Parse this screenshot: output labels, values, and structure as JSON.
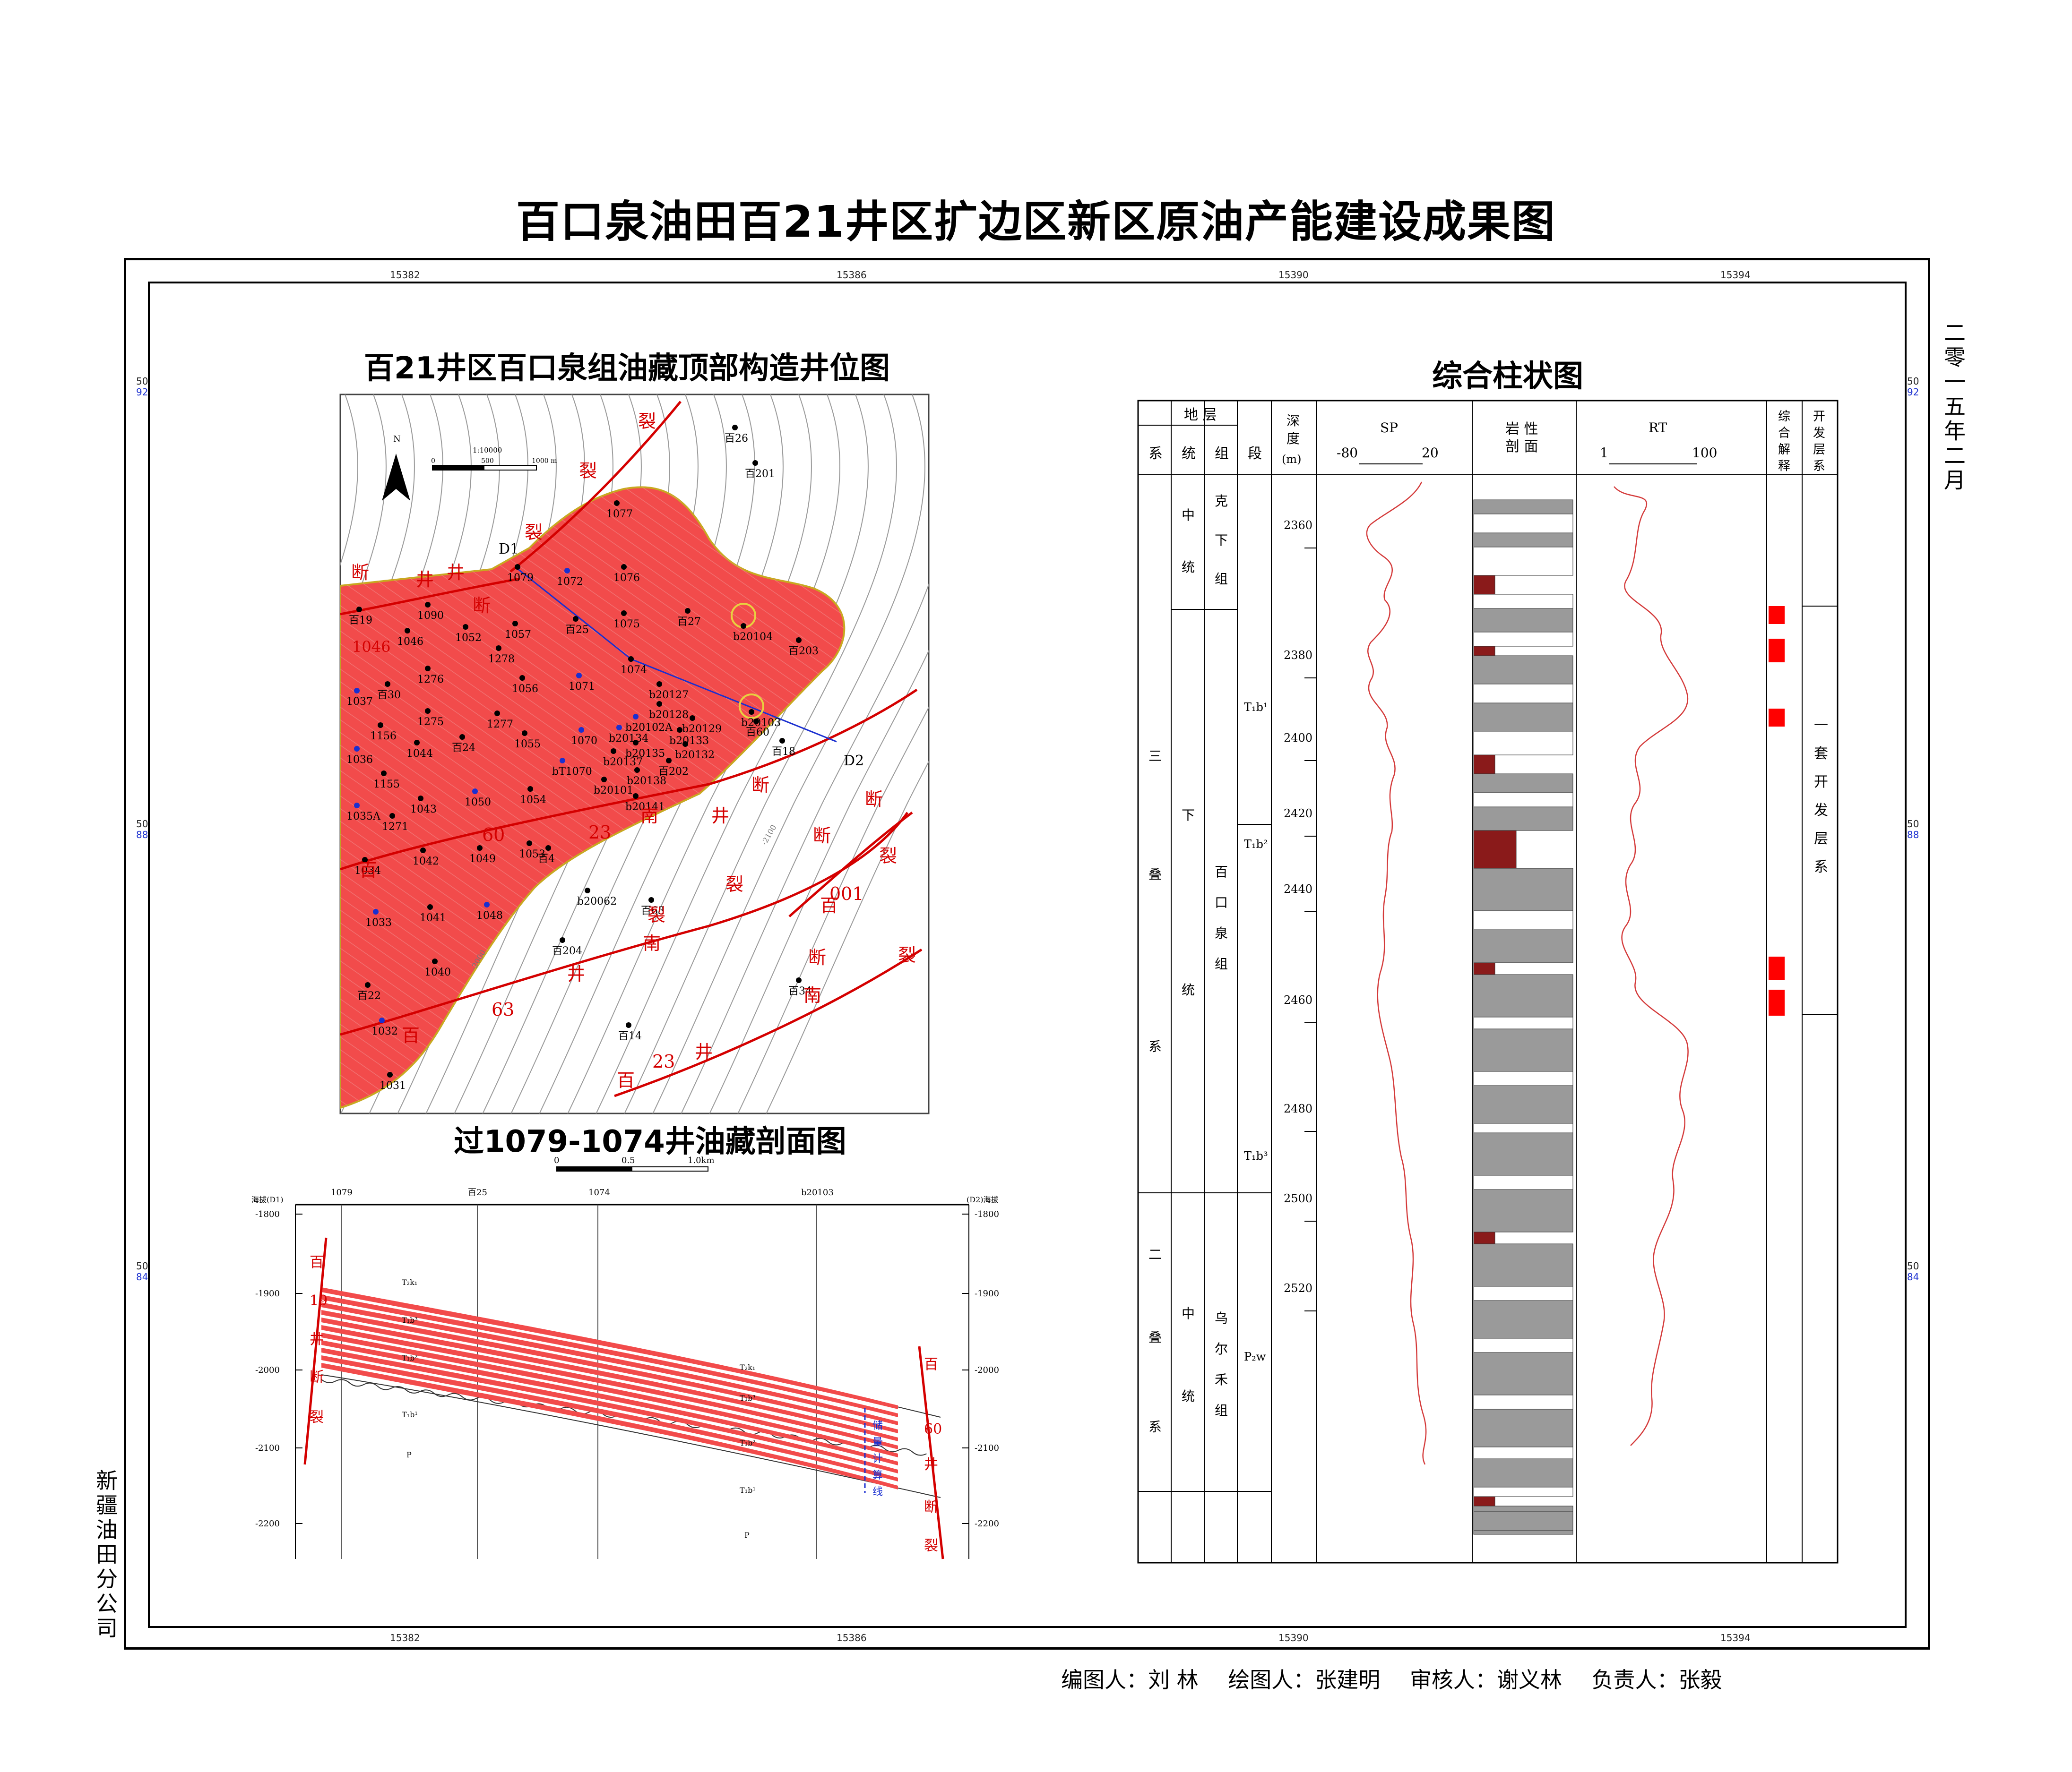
{
  "title": "百口泉油田百21井区扩边区新区原油产能建设成果图",
  "side_right": "二零一五年二月",
  "side_left": "新疆油田分公司",
  "footer": {
    "editor": "编图人：刘 林",
    "drafter": "绘图人：张建明",
    "reviewer": "审核人：谢义林",
    "leader": "负责人：张毅"
  },
  "frame_coords": {
    "x_labels": [
      "15382",
      "15386",
      "15390",
      "15394"
    ],
    "y_labels": [
      [
        "50",
        "92"
      ],
      [
        "50",
        "88"
      ],
      [
        "50",
        "84"
      ]
    ]
  },
  "map": {
    "title": "百21井区百口泉组油藏顶部构造井位图",
    "north": "N",
    "scale_text": "1:10000",
    "scale_ticks": [
      "0",
      "500",
      "1000 m"
    ],
    "contour_labels": [
      "-2100",
      "-2000"
    ],
    "section_ends": [
      "D1",
      "D2"
    ],
    "wells": [
      "百26",
      "百201",
      "1077",
      "1079",
      "1072",
      "1076",
      "百19",
      "1090",
      "1046",
      "1052",
      "1057",
      "百25",
      "1075",
      "百27",
      "b20104",
      "百203",
      "1278",
      "1276",
      "1056",
      "1071",
      "1074",
      "b20127",
      "1037",
      "百30",
      "1275",
      "1277",
      "b20128",
      "b20129",
      "b20103",
      "百60",
      "1156",
      "1044",
      "百24",
      "1055",
      "1070",
      "b20102A",
      "b20134",
      "b20133",
      "b20132",
      "百18",
      "1036",
      "bT1070",
      "b20135",
      "b20137",
      "百202",
      "1155",
      "1043",
      "1050",
      "1054",
      "b20101",
      "b20138",
      "1035A",
      "1271",
      "b20141",
      "1034",
      "1042",
      "1049",
      "1053",
      "百4",
      "百22",
      "1033",
      "1041",
      "1048",
      "b20062",
      "百63",
      "1040",
      "百204",
      "1032",
      "1031",
      "百34",
      "百14"
    ],
    "fault_labels": [
      "裂",
      "断",
      "井",
      "百",
      "19",
      "60",
      "南",
      "001",
      "23",
      "63"
    ],
    "fault_names_extra": [
      "1046"
    ]
  },
  "section": {
    "title": "过1079-1074井油藏剖面图",
    "scale_ticks": [
      "0",
      "0.5",
      "1.0km"
    ],
    "left_axis_label": "海拔(D1)",
    "right_axis_label": "(D2)海拔",
    "depth_ticks": [
      "-1800",
      "-1900",
      "-2000",
      "-2100",
      "-2200"
    ],
    "wells": [
      "1079",
      "百25",
      "1074",
      "b20103"
    ],
    "layers": [
      "T₂k₁",
      "T₁b³",
      "T₁b²",
      "T₁b¹",
      "P"
    ],
    "left_fault": [
      "百",
      "19",
      "井",
      "断",
      "裂"
    ],
    "right_fault": [
      "百",
      "60",
      "井",
      "断",
      "裂"
    ],
    "reserve_line": [
      "储",
      "量",
      "计",
      "算",
      "线"
    ]
  },
  "column": {
    "title": "综合柱状图",
    "header": {
      "strata": "地 层",
      "sys": "系",
      "series": "统",
      "group": "组",
      "section": "段",
      "depth": [
        "深",
        "度",
        "(m)"
      ],
      "sp": "SP",
      "sp_min": "-80",
      "sp_max": "20",
      "litho": [
        "岩 性",
        "剖 面"
      ],
      "rt": "RT",
      "rt_min": "1",
      "rt_max": "100",
      "interp": [
        "综",
        "合",
        "解",
        "释"
      ],
      "dev": [
        "开",
        "发",
        "层",
        "系"
      ]
    },
    "systems": [
      {
        "name": [
          "三",
          "叠",
          "系"
        ]
      },
      {
        "name": [
          "二",
          "叠",
          "系"
        ]
      }
    ],
    "series_cells": [
      {
        "name": [
          "中",
          "统"
        ]
      },
      {
        "name": [
          "下",
          "统"
        ]
      },
      {
        "name": [
          "中",
          "统"
        ]
      }
    ],
    "groups": [
      {
        "name": [
          "克",
          "下",
          "组"
        ]
      },
      {
        "name": [
          "百",
          "口",
          "泉",
          "组"
        ]
      },
      {
        "name": [
          "乌",
          "尔",
          "禾",
          "组"
        ]
      }
    ],
    "sections": [
      "T₁b¹",
      "T₁b²",
      "T₁b³",
      "P₂w"
    ],
    "depth_ticks": [
      "2360",
      "2380",
      "2400",
      "2420",
      "2440",
      "2460",
      "2480",
      "2500",
      "2520"
    ],
    "dev_system": [
      "一",
      "套",
      "开",
      "发",
      "层",
      "系"
    ]
  }
}
